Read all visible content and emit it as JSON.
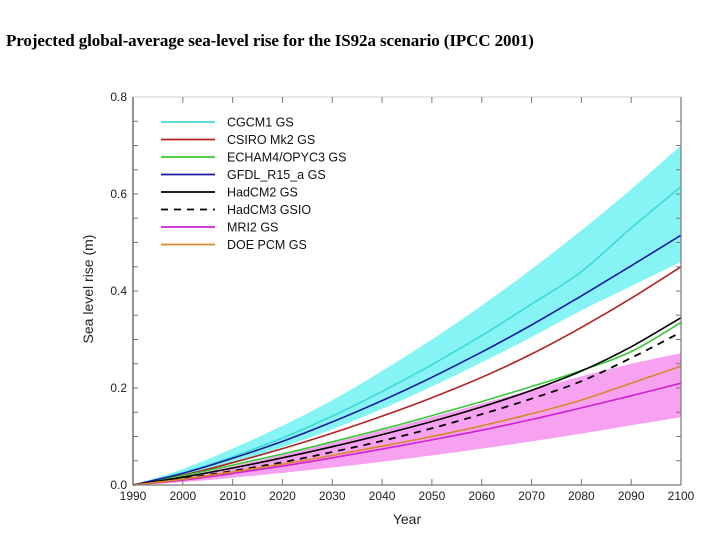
{
  "page": {
    "title": "Projected global-average sea-level rise for the IS92a scenario (IPCC 2001)"
  },
  "chart_data": {
    "type": "line",
    "title": "Projected global-average sea-level rise for the IS92a scenario (IPCC 2001)",
    "xlabel": "Year",
    "ylabel": "Sea level rise (m)",
    "xlim": [
      1990,
      2100
    ],
    "ylim": [
      0.0,
      0.8
    ],
    "xticks": [
      1990,
      2000,
      2010,
      2020,
      2030,
      2040,
      2050,
      2060,
      2070,
      2080,
      2090,
      2100
    ],
    "xtick_labels": [
      "1990",
      "2000",
      "2010",
      "2020",
      "2030",
      "2040",
      "2050",
      "2060",
      "2070",
      "2080",
      "2090",
      "2100"
    ],
    "yticks": [
      0.0,
      0.2,
      0.4,
      0.6,
      0.8
    ],
    "ytick_labels": [
      "0.0",
      "0.2",
      "0.4",
      "0.6",
      "0.8"
    ],
    "y_minor_step": 0.05,
    "grid": false,
    "legend_position": "top-left",
    "x": [
      1990,
      2000,
      2010,
      2020,
      2030,
      2040,
      2050,
      2060,
      2070,
      2080,
      2090,
      2100
    ],
    "bands": [
      {
        "name": "CGCM1 GS range",
        "color": "#7ff3f3",
        "lower": [
          0.0,
          0.018,
          0.045,
          0.078,
          0.115,
          0.157,
          0.203,
          0.253,
          0.305,
          0.36,
          0.41,
          0.46
        ],
        "upper": [
          0.0,
          0.033,
          0.075,
          0.122,
          0.175,
          0.235,
          0.3,
          0.37,
          0.445,
          0.525,
          0.61,
          0.7
        ]
      },
      {
        "name": "MRI2 GS range",
        "color": "#f79cf0",
        "lower": [
          0.0,
          0.006,
          0.015,
          0.025,
          0.036,
          0.048,
          0.061,
          0.075,
          0.09,
          0.106,
          0.123,
          0.14
        ],
        "upper": [
          0.0,
          0.017,
          0.039,
          0.062,
          0.087,
          0.113,
          0.14,
          0.168,
          0.196,
          0.224,
          0.25,
          0.272
        ]
      }
    ],
    "series": [
      {
        "name": "CGCM1 GS",
        "color": "#3ed8d8",
        "dash": false,
        "values": [
          0.0,
          0.025,
          0.058,
          0.097,
          0.142,
          0.193,
          0.248,
          0.308,
          0.373,
          0.44,
          0.53,
          0.615
        ]
      },
      {
        "name": "CSIRO Mk2 GS",
        "color": "#b22222",
        "dash": false,
        "values": [
          0.0,
          0.02,
          0.046,
          0.075,
          0.107,
          0.142,
          0.18,
          0.222,
          0.27,
          0.325,
          0.385,
          0.45
        ]
      },
      {
        "name": "ECHAM4/OPYC3 GS",
        "color": "#38c838",
        "dash": false,
        "values": [
          0.0,
          0.019,
          0.041,
          0.064,
          0.089,
          0.115,
          0.143,
          0.172,
          0.203,
          0.236,
          0.275,
          0.335
        ]
      },
      {
        "name": "GFDL_R15_a GS",
        "color": "#1a1aa0",
        "dash": false,
        "values": [
          0.0,
          0.024,
          0.055,
          0.09,
          0.13,
          0.174,
          0.222,
          0.274,
          0.33,
          0.39,
          0.452,
          0.515
        ]
      },
      {
        "name": "HadCM2 GS",
        "color": "#000000",
        "dash": false,
        "values": [
          0.0,
          0.016,
          0.035,
          0.056,
          0.079,
          0.104,
          0.131,
          0.161,
          0.195,
          0.235,
          0.285,
          0.345
        ]
      },
      {
        "name": "HadCM3 GSIO",
        "color": "#000000",
        "dash": true,
        "values": [
          0.0,
          0.013,
          0.029,
          0.047,
          0.068,
          0.091,
          0.117,
          0.146,
          0.178,
          0.214,
          0.262,
          0.315
        ]
      },
      {
        "name": "MRI2 GS",
        "color": "#d020d0",
        "dash": false,
        "values": [
          0.0,
          0.01,
          0.024,
          0.039,
          0.056,
          0.074,
          0.093,
          0.113,
          0.135,
          0.159,
          0.184,
          0.21
        ]
      },
      {
        "name": "DOE PCM GS",
        "color": "#d8882a",
        "dash": false,
        "values": [
          0.0,
          0.012,
          0.027,
          0.043,
          0.061,
          0.08,
          0.1,
          0.122,
          0.147,
          0.175,
          0.21,
          0.245
        ]
      }
    ]
  }
}
